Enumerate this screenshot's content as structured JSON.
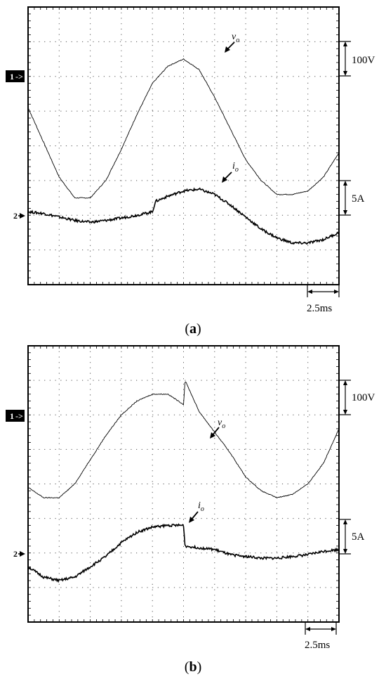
{
  "panels": [
    {
      "id": "a",
      "caption": "(a)",
      "caption_letter": "a",
      "scale_labels": {
        "voltage": "100V",
        "current": "5A",
        "time": "2.5ms"
      },
      "channel_markers": {
        "ch1": "1",
        "ch2": "2"
      },
      "trace_labels": {
        "vo": {
          "base": "v",
          "sub": "o"
        },
        "io": {
          "base": "i",
          "sub": "o"
        }
      }
    },
    {
      "id": "b",
      "caption": "(b)",
      "caption_letter": "b",
      "scale_labels": {
        "voltage": "100V",
        "current": "5A",
        "time": "2.5ms"
      },
      "channel_markers": {
        "ch1": "1",
        "ch2": "2"
      },
      "trace_labels": {
        "vo": {
          "base": "v",
          "sub": "o"
        },
        "io": {
          "base": "i",
          "sub": "o"
        }
      }
    }
  ],
  "chart_data": [
    {
      "type": "line",
      "panel": "a",
      "grid": true,
      "x_divisions": 10,
      "y_divisions": 8,
      "time_per_div": "2.5ms",
      "x_unit": "div",
      "y_unit": "div",
      "series": [
        {
          "name": "vo",
          "scale": "100V/div",
          "x": [
            0,
            0.5,
            1,
            1.5,
            2,
            2.5,
            3,
            3.5,
            4,
            4.5,
            5,
            5.5,
            6,
            6.5,
            7,
            7.5,
            8,
            8.5,
            9,
            9.5,
            10
          ],
          "y": [
            5.1,
            4.1,
            3.1,
            2.5,
            2.5,
            3.0,
            3.9,
            4.9,
            5.8,
            6.3,
            6.5,
            6.2,
            5.4,
            4.5,
            3.6,
            3.0,
            2.6,
            2.6,
            2.7,
            3.1,
            3.8
          ]
        },
        {
          "name": "io",
          "scale": "5A/div",
          "x": [
            0,
            0.5,
            1,
            1.5,
            2,
            2.5,
            3,
            3.5,
            4,
            4.1,
            4.5,
            5,
            5.5,
            6,
            6.5,
            7,
            7.5,
            8,
            8.5,
            9,
            9.5,
            10
          ],
          "y": [
            2.1,
            2.05,
            1.95,
            1.85,
            1.8,
            1.85,
            1.92,
            2.0,
            2.1,
            2.4,
            2.55,
            2.7,
            2.75,
            2.6,
            2.3,
            1.95,
            1.6,
            1.35,
            1.2,
            1.2,
            1.3,
            1.5
          ]
        }
      ]
    },
    {
      "type": "line",
      "panel": "b",
      "grid": true,
      "x_divisions": 10,
      "y_divisions": 8,
      "time_per_div": "2.5ms",
      "x_unit": "div",
      "y_unit": "div",
      "series": [
        {
          "name": "vo",
          "scale": "100V/div",
          "x": [
            0,
            0.5,
            1,
            1.5,
            2,
            2.5,
            3,
            3.5,
            4,
            4.5,
            5,
            5.05,
            5.5,
            6,
            6.5,
            7,
            7.5,
            8,
            8.5,
            9,
            9.5,
            10
          ],
          "y": [
            3.9,
            3.6,
            3.6,
            4.0,
            4.7,
            5.4,
            6.0,
            6.4,
            6.6,
            6.6,
            6.3,
            7.0,
            6.1,
            5.5,
            4.9,
            4.2,
            3.8,
            3.6,
            3.7,
            4.0,
            4.6,
            5.6
          ]
        },
        {
          "name": "io",
          "scale": "5A/div",
          "x": [
            0,
            0.5,
            1,
            1.5,
            2,
            2.5,
            3,
            3.5,
            4,
            4.5,
            5,
            5.05,
            5.5,
            6,
            6.5,
            7,
            7.5,
            8,
            8.5,
            9,
            9.5,
            10
          ],
          "y": [
            1.6,
            1.3,
            1.2,
            1.3,
            1.6,
            1.9,
            2.3,
            2.6,
            2.75,
            2.8,
            2.8,
            2.2,
            2.15,
            2.1,
            1.95,
            1.9,
            1.85,
            1.85,
            1.9,
            1.95,
            2.05,
            2.1
          ]
        }
      ]
    }
  ]
}
